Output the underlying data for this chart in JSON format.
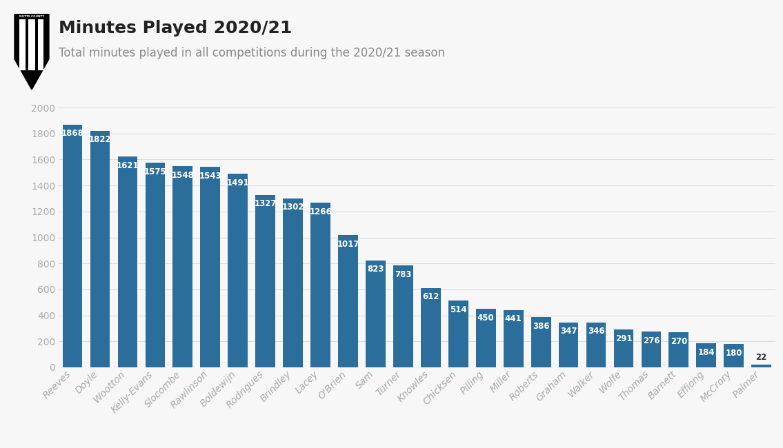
{
  "title": "Minutes Played 2020/21",
  "subtitle": "Total minutes played in all competitions during the 2020/21 season",
  "players": [
    "Reeves",
    "Doyle",
    "Wootton",
    "Kelly-Evans",
    "Slocombe",
    "Rawlinson",
    "Boldewijn",
    "Rodrigues",
    "Brindley",
    "Lacey",
    "O'Brien",
    "Sam",
    "Turner",
    "Knowles",
    "Chicksen",
    "Pilling",
    "Miller",
    "Roberts",
    "Graham",
    "Walker",
    "Wolfe",
    "Thomas",
    "Barnett",
    "Effiong",
    "McCrory",
    "Palmer"
  ],
  "values": [
    1868,
    1822,
    1621,
    1575,
    1548,
    1543,
    1491,
    1327,
    1302,
    1266,
    1017,
    823,
    783,
    612,
    514,
    450,
    441,
    386,
    347,
    346,
    291,
    276,
    270,
    184,
    180,
    22
  ],
  "bar_color": "#2b6e9c",
  "label_color_inside": "#ffffff",
  "label_color_outside": "#333333",
  "background_color": "#f7f7f7",
  "axes_background": "#f7f7f7",
  "grid_color": "#dddddd",
  "title_color": "#222222",
  "subtitle_color": "#888888",
  "tick_color": "#aaaaaa",
  "ytick_label_color": "#aaaaaa",
  "ylim": [
    0,
    2000
  ],
  "yticks": [
    0,
    200,
    400,
    600,
    800,
    1000,
    1200,
    1400,
    1600,
    1800,
    2000
  ],
  "title_fontsize": 18,
  "subtitle_fontsize": 12,
  "bar_label_fontsize": 8.5,
  "tick_fontsize": 10,
  "inside_threshold": 100
}
